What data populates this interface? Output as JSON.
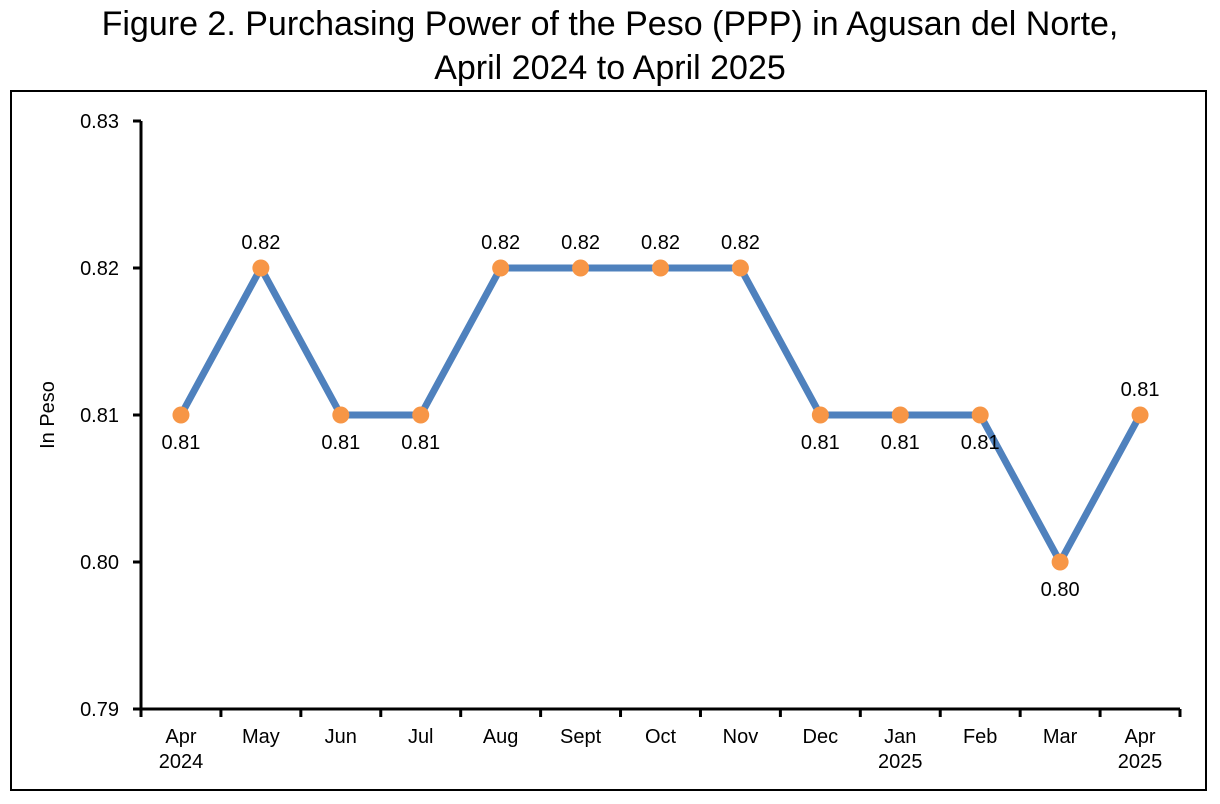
{
  "title_lines": [
    "Figure 2. Purchasing Power of the Peso (PPP) in Agusan del Norte,",
    "April 2024 to April 2025"
  ],
  "chart_data": {
    "type": "line",
    "title": "Figure 2. Purchasing Power of the Peso (PPP) in Agusan del Norte, April 2024 to April 2025",
    "xlabel": "",
    "ylabel": "In Peso",
    "categories": [
      "Apr 2024",
      "May",
      "Jun",
      "Jul",
      "Aug",
      "Sept",
      "Oct",
      "Nov",
      "Dec",
      "Jan 2025",
      "Feb",
      "Mar",
      "Apr 2025"
    ],
    "category_label_lines": [
      [
        "Apr",
        "2024"
      ],
      [
        "May"
      ],
      [
        "Jun"
      ],
      [
        "Jul"
      ],
      [
        "Aug"
      ],
      [
        "Sept"
      ],
      [
        "Oct"
      ],
      [
        "Nov"
      ],
      [
        "Dec"
      ],
      [
        "Jan",
        "2025"
      ],
      [
        "Feb"
      ],
      [
        "Mar"
      ],
      [
        "Apr",
        "2025"
      ]
    ],
    "values": [
      0.81,
      0.82,
      0.81,
      0.81,
      0.82,
      0.82,
      0.82,
      0.82,
      0.81,
      0.81,
      0.81,
      0.8,
      0.81
    ],
    "data_labels": [
      "0.81",
      "0.82",
      "0.81",
      "0.81",
      "0.82",
      "0.82",
      "0.82",
      "0.82",
      "0.81",
      "0.81",
      "0.81",
      "0.80",
      "0.81"
    ],
    "data_label_positions": [
      "below",
      "above",
      "below",
      "below",
      "above",
      "above",
      "above",
      "above",
      "below",
      "below",
      "below",
      "below",
      "above"
    ],
    "ylim": [
      0.79,
      0.83
    ],
    "yticks": [
      0.79,
      0.8,
      0.81,
      0.82,
      0.83
    ],
    "ytick_labels": [
      "0.79",
      "0.80",
      "0.81",
      "0.82",
      "0.83"
    ],
    "grid": false,
    "legend": "none",
    "colors": {
      "line": "#4F81BD",
      "marker": "#F79646",
      "axis": "#000000"
    }
  }
}
